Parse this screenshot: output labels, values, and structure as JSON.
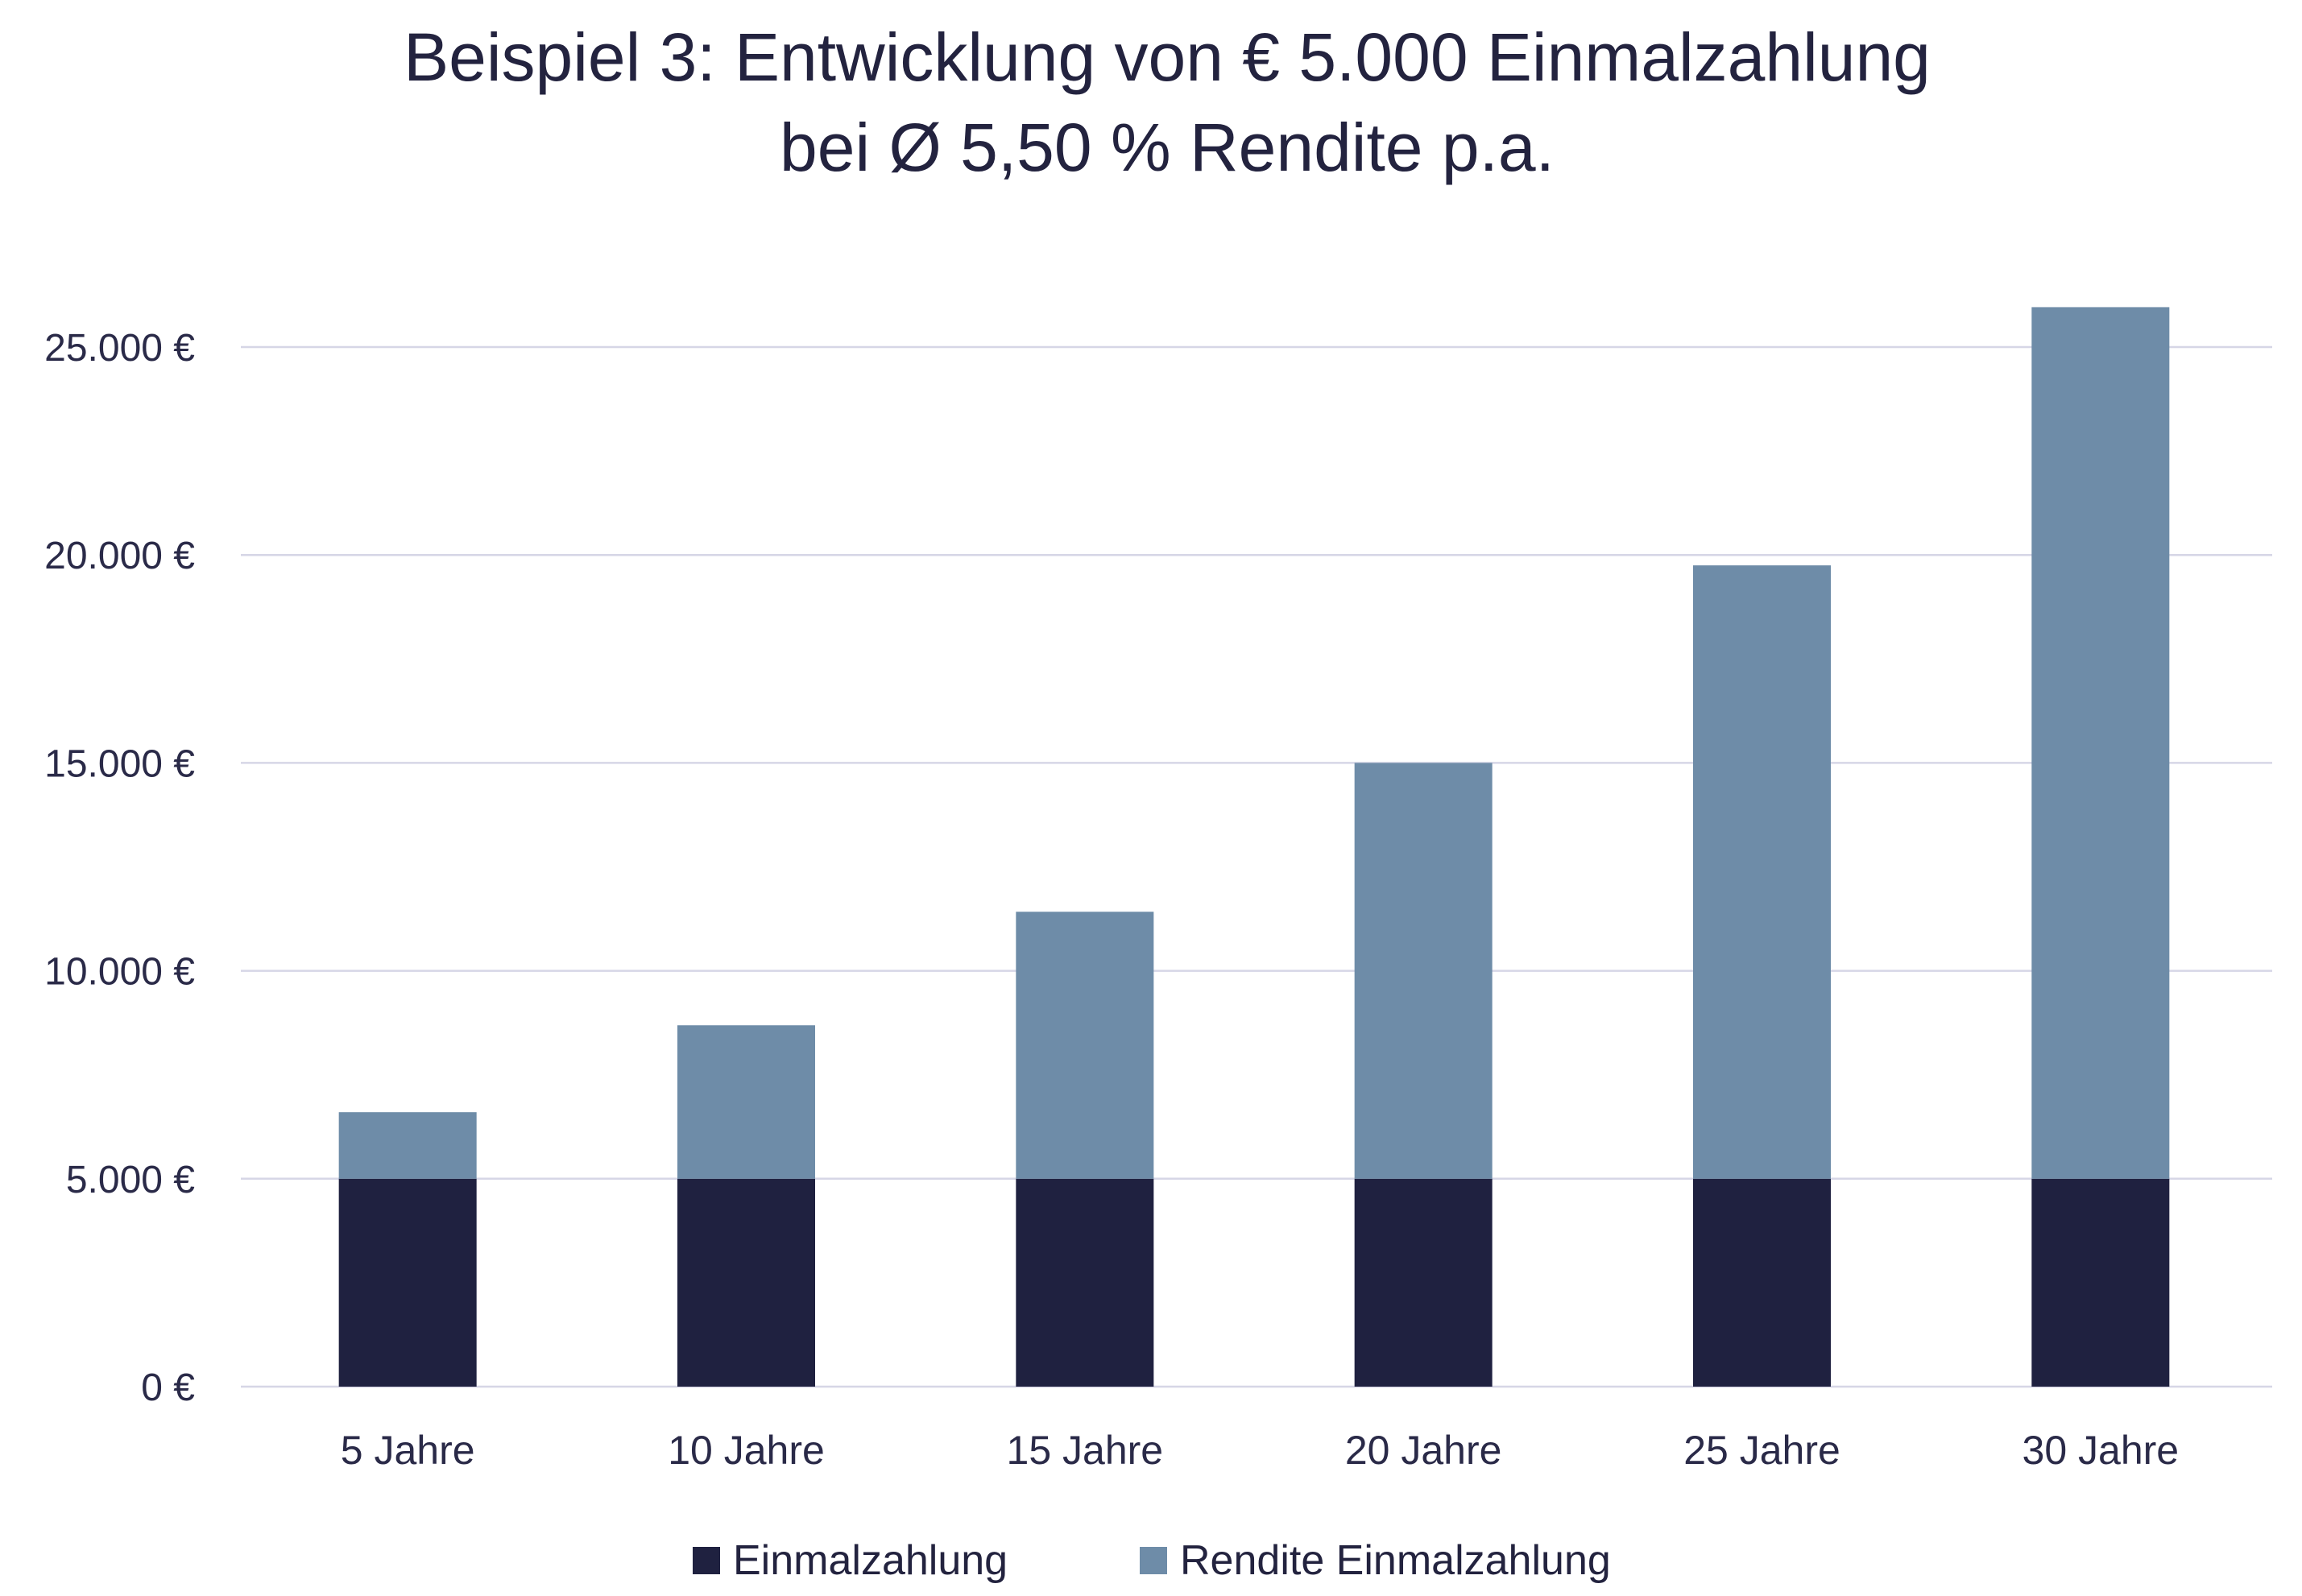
{
  "chart_data": {
    "type": "bar",
    "stacked": true,
    "title_lines": [
      "Beispiel 3: Entwicklung von € 5.000 Einmalzahlung",
      "bei Ø 5,50 % Rendite p.a."
    ],
    "categories": [
      "5 Jahre",
      "10 Jahre",
      "15 Jahre",
      "20 Jahre",
      "25 Jahre",
      "30 Jahre"
    ],
    "series": [
      {
        "name": "Einmalzahlung",
        "color": "#1f2140",
        "values": [
          5000,
          5000,
          5000,
          5000,
          5000,
          5000
        ]
      },
      {
        "name": "Rendite Einmalzahlung",
        "color": "#6e8ca8",
        "values": [
          1600,
          3690,
          6420,
          10000,
          14750,
          20960
        ]
      }
    ],
    "yticks": [
      0,
      5000,
      10000,
      15000,
      20000,
      25000
    ],
    "ytick_labels": [
      "0 €",
      "5.000 €",
      "10.000 €",
      "15.000 €",
      "20.000 €",
      "25.000 €"
    ],
    "ylim": [
      0,
      25000
    ],
    "grid": true,
    "gridline_color": "#d6d6e6",
    "legend_position": "bottom",
    "xlabel": "",
    "ylabel": ""
  }
}
